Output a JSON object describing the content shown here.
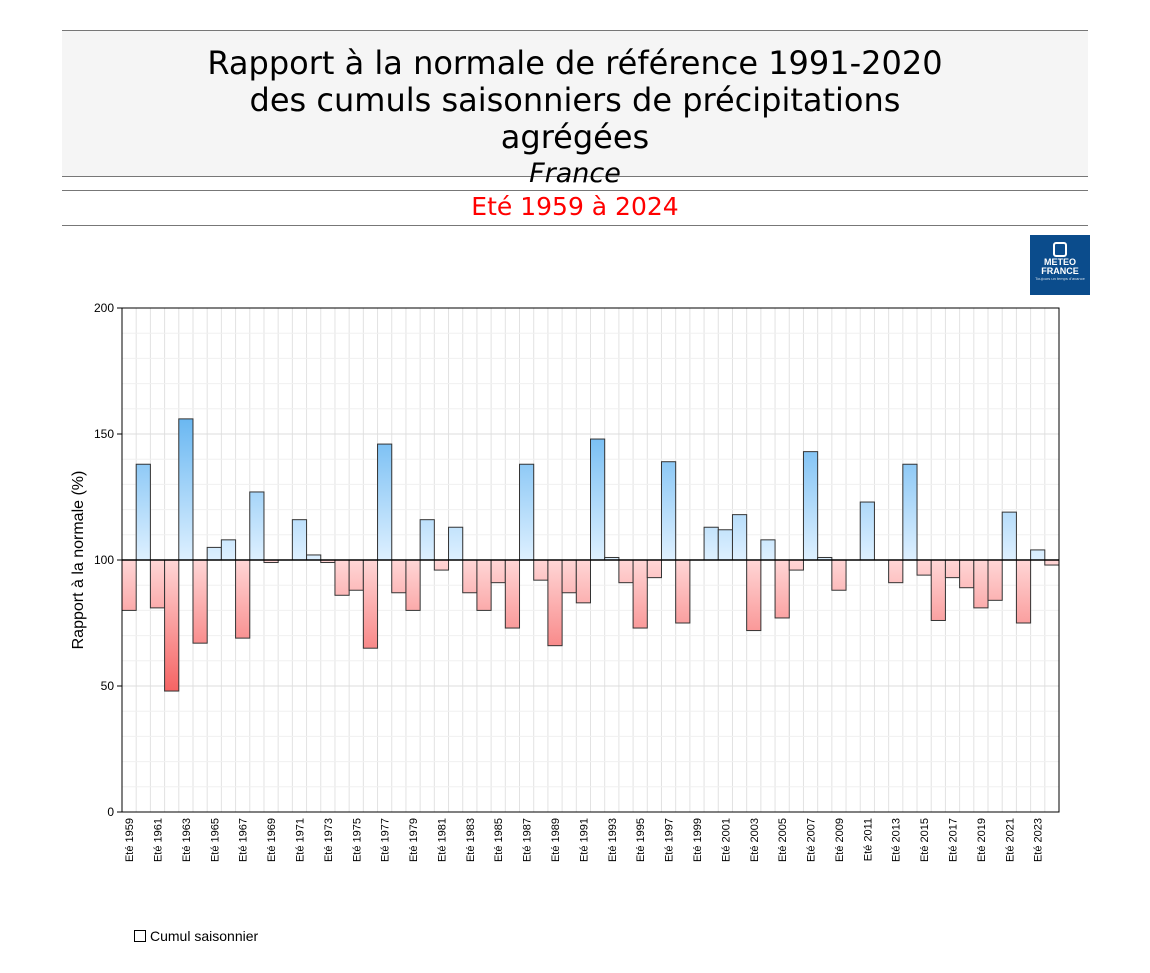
{
  "header": {
    "title": "Rapport à la normale de référence 1991-2020 des cumuls saisonniers de précipitations agrégées",
    "region": "France",
    "subtitle": "Eté 1959 à 2024"
  },
  "logo": {
    "line1": "METEO",
    "line2": "FRANCE",
    "tagline": "Toujours un temps d'avance"
  },
  "legend": {
    "label": "Cumul saisonnier"
  },
  "colors": {
    "above_light": "#def0ff",
    "above_dark": "#4aa8ee",
    "below_light": "#ffd6d6",
    "below_dark": "#f45c5c"
  },
  "chart_data": {
    "type": "bar",
    "title": "Rapport à la normale de référence 1991-2020 des cumuls saisonniers de précipitations agrégées",
    "ylabel": "Rapport à la normale (%)",
    "xlabel": "",
    "ylim": [
      0,
      200
    ],
    "yticks": [
      0,
      50,
      100,
      150,
      200
    ],
    "baseline": 100,
    "grid": true,
    "legend_position": "bottom-left",
    "label_prefix": "Eté",
    "years": [
      1959,
      1960,
      1961,
      1962,
      1963,
      1964,
      1965,
      1966,
      1967,
      1968,
      1969,
      1970,
      1971,
      1972,
      1973,
      1974,
      1975,
      1976,
      1977,
      1978,
      1979,
      1980,
      1981,
      1982,
      1983,
      1984,
      1985,
      1986,
      1987,
      1988,
      1989,
      1990,
      1991,
      1992,
      1993,
      1994,
      1995,
      1996,
      1997,
      1998,
      1999,
      2000,
      2001,
      2002,
      2003,
      2004,
      2005,
      2006,
      2007,
      2008,
      2009,
      2010,
      2011,
      2012,
      2013,
      2014,
      2015,
      2016,
      2017,
      2018,
      2019,
      2020,
      2021,
      2022,
      2023,
      2024
    ],
    "values": [
      80,
      138,
      81,
      48,
      156,
      67,
      105,
      108,
      69,
      127,
      99,
      100,
      116,
      102,
      99,
      86,
      88,
      65,
      146,
      87,
      80,
      116,
      96,
      113,
      87,
      80,
      91,
      73,
      138,
      92,
      66,
      87,
      83,
      148,
      101,
      91,
      73,
      93,
      139,
      75,
      100,
      113,
      112,
      118,
      72,
      108,
      77,
      96,
      143,
      101,
      88,
      100,
      123,
      100,
      91,
      138,
      94,
      76,
      93,
      89,
      81,
      84,
      119,
      75,
      104,
      98
    ]
  }
}
